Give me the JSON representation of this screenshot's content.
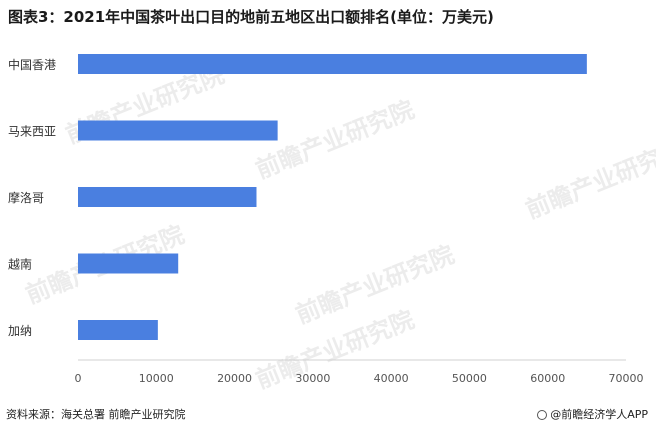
{
  "title": "图表3：2021年中国茶叶出口目的地前五地区出口额排名(单位：万美元)",
  "source": "资料来源：海关总署 前瞻产业研究院",
  "brand": "@前瞻经济学人APP",
  "watermark": "前瞻产业研究院",
  "chart_data": {
    "type": "bar",
    "orientation": "horizontal",
    "categories": [
      "中国香港",
      "马来西亚",
      "摩洛哥",
      "越南",
      "加纳"
    ],
    "values": [
      65000,
      25500,
      22800,
      12800,
      10200
    ],
    "xlim": [
      0,
      70000
    ],
    "xticks": [
      0,
      10000,
      20000,
      30000,
      40000,
      50000,
      60000,
      70000
    ],
    "xlabel": "",
    "ylabel": "",
    "grid": false,
    "bar_color": "#4a7fe0"
  }
}
